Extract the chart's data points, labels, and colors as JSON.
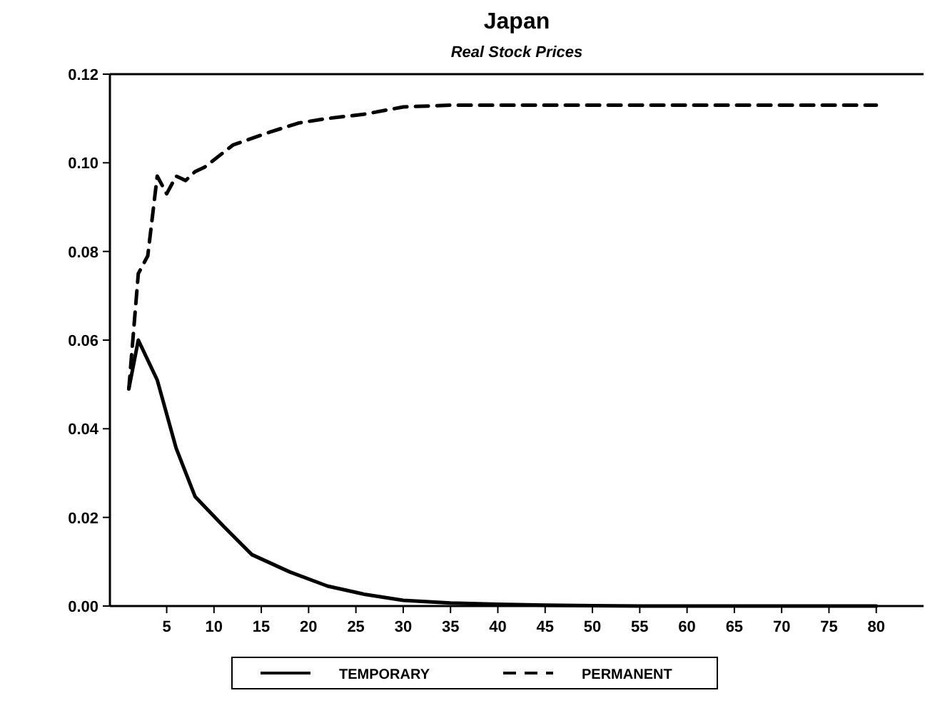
{
  "chart_data": {
    "type": "line",
    "title": "Japan",
    "subtitle": "Real Stock Prices",
    "series": [
      {
        "name": "TEMPORARY",
        "color": "#000000",
        "line_style": "solid",
        "x": [
          1,
          2,
          4,
          6,
          8,
          11,
          14,
          18,
          22,
          26,
          30,
          35,
          40,
          45,
          50,
          55,
          60,
          65,
          70,
          75,
          80
        ],
        "values": [
          0.049,
          0.06,
          0.051,
          0.0356,
          0.0247,
          0.018,
          0.0116,
          0.0077,
          0.0045,
          0.0026,
          0.0013,
          0.0007,
          0.0004,
          0.0002,
          0.0001,
          0,
          0,
          0,
          0,
          0,
          0
        ]
      },
      {
        "name": "PERMANENT",
        "color": "#000000",
        "line_style": "dashed",
        "x": [
          1,
          2,
          3,
          4,
          5,
          6,
          7,
          8,
          9,
          12,
          16,
          19,
          22,
          26,
          30,
          35,
          40,
          45,
          50,
          55,
          60,
          65,
          70,
          75,
          80
        ],
        "values": [
          0.049,
          0.075,
          0.079,
          0.097,
          0.093,
          0.097,
          0.096,
          0.098,
          0.099,
          0.104,
          0.107,
          0.109,
          0.11,
          0.111,
          0.1126,
          0.113,
          0.113,
          0.113,
          0.113,
          0.113,
          0.113,
          0.113,
          0.113,
          0.113,
          0.113
        ]
      }
    ],
    "xlim": [
      -1,
      85
    ],
    "xticks": [
      5,
      10,
      15,
      20,
      25,
      30,
      35,
      40,
      45,
      50,
      55,
      60,
      65,
      70,
      75,
      80
    ],
    "ylim": [
      0,
      0.12
    ],
    "yticks": [
      {
        "value": 0,
        "label": "0.00"
      },
      {
        "value": 0.02,
        "label": "0.02"
      },
      {
        "value": 0.04,
        "label": "0.04"
      },
      {
        "value": 0.06,
        "label": "0.06"
      },
      {
        "value": 0.08,
        "label": "0.08"
      },
      {
        "value": 0.1,
        "label": "0.10"
      },
      {
        "value": 0.12,
        "label": "0.12"
      }
    ],
    "legend": "bottom",
    "grid": false
  }
}
